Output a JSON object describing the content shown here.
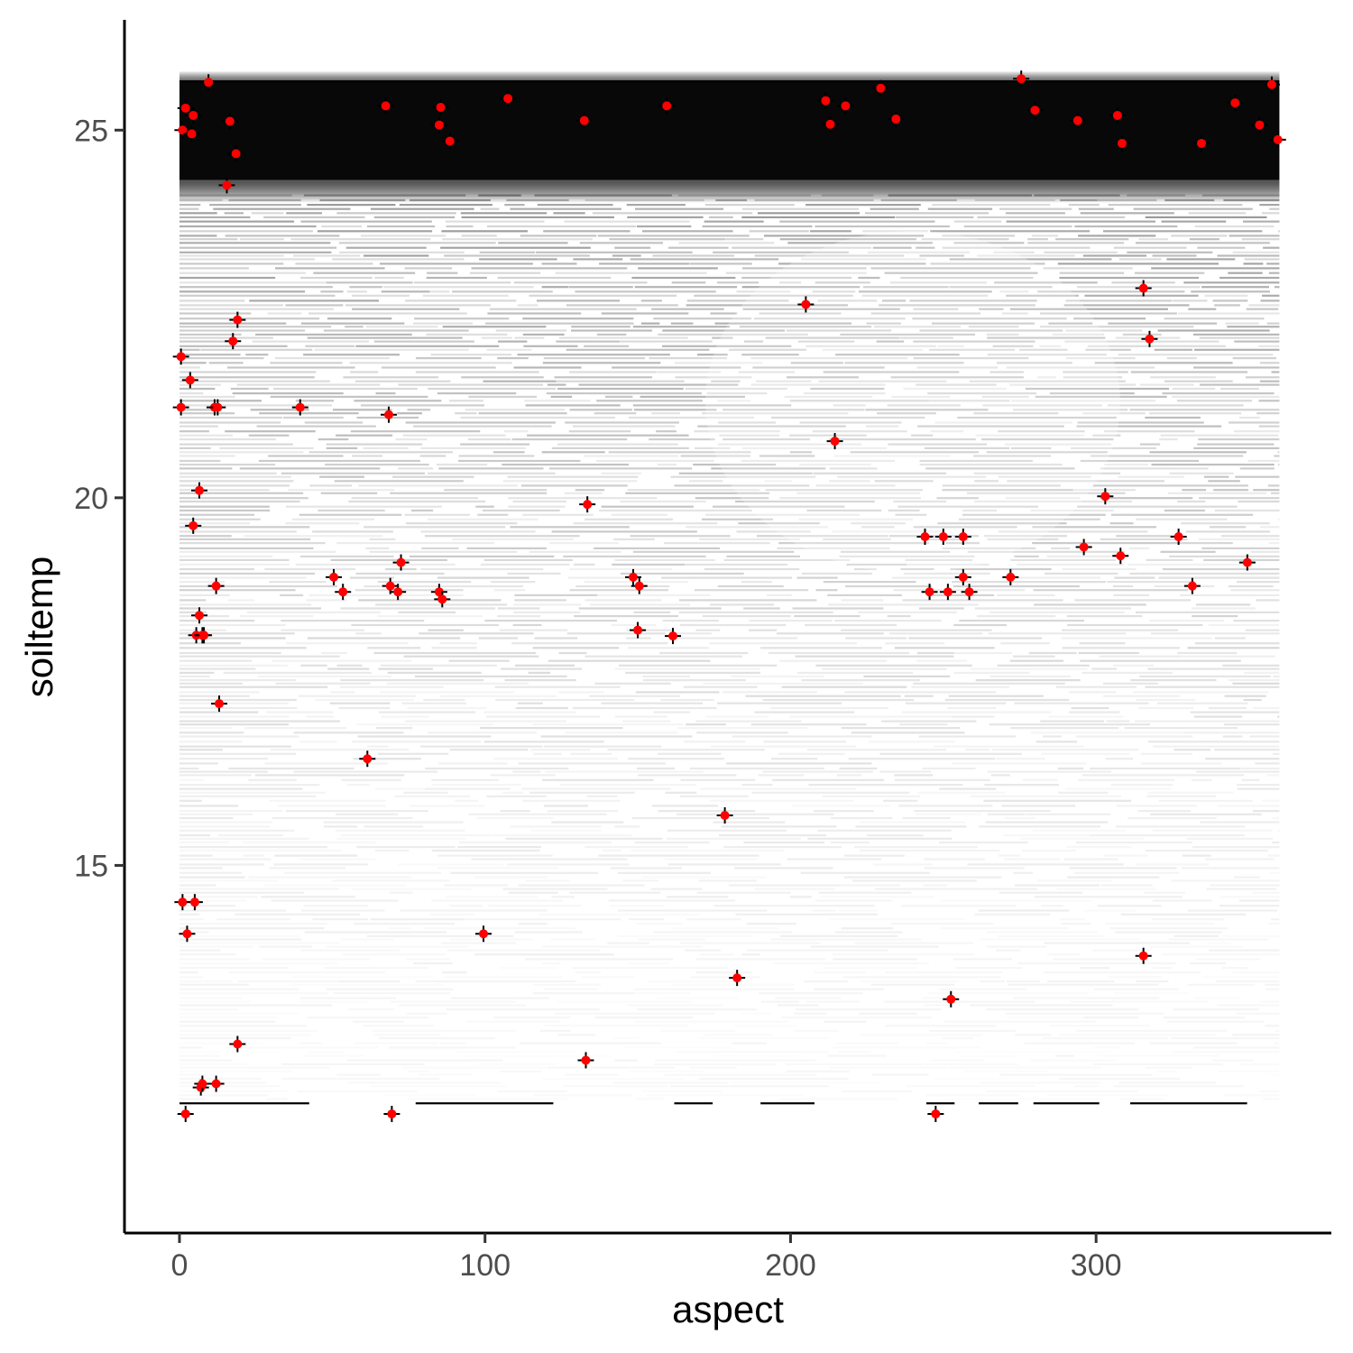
{
  "chart_data": {
    "type": "scatter",
    "xlabel": "aspect",
    "ylabel": "soiltemp",
    "xlim": [
      -18,
      377
    ],
    "ylim": [
      10.0,
      26.5
    ],
    "x_ticks": [
      0,
      100,
      200,
      300
    ],
    "y_ticks": [
      15,
      20,
      25
    ],
    "grid": false,
    "legend": "none",
    "background": {
      "description": "dense cloud of semi-transparent black points over aspect 0 to 360; nearly solid band at soiltemp 24.2 to 25.8, thinning toward 11.8",
      "color": "#000000",
      "x_range": [
        0,
        360
      ],
      "dense_band": [
        24.2,
        25.8
      ],
      "y_min": 11.8
    },
    "series": [
      {
        "color": "#ff0000",
        "points": [
          {
            "x": 9.5,
            "y": 25.65
          },
          {
            "x": 2,
            "y": 25.3
          },
          {
            "x": 4.5,
            "y": 25.2
          },
          {
            "x": 1,
            "y": 25.0
          },
          {
            "x": 4,
            "y": 24.95
          },
          {
            "x": 16.5,
            "y": 25.12
          },
          {
            "x": 18.5,
            "y": 24.68
          },
          {
            "x": 15.5,
            "y": 24.25
          },
          {
            "x": 67.5,
            "y": 25.33
          },
          {
            "x": 85.5,
            "y": 25.31
          },
          {
            "x": 85,
            "y": 25.07
          },
          {
            "x": 88.5,
            "y": 24.85
          },
          {
            "x": 107.5,
            "y": 25.43
          },
          {
            "x": 132.5,
            "y": 25.13
          },
          {
            "x": 159.5,
            "y": 25.33
          },
          {
            "x": 211.5,
            "y": 25.4
          },
          {
            "x": 213,
            "y": 25.08
          },
          {
            "x": 218,
            "y": 25.33
          },
          {
            "x": 229.5,
            "y": 25.57
          },
          {
            "x": 234.5,
            "y": 25.15
          },
          {
            "x": 275.5,
            "y": 25.7
          },
          {
            "x": 280,
            "y": 25.27
          },
          {
            "x": 294,
            "y": 25.13
          },
          {
            "x": 307,
            "y": 25.2
          },
          {
            "x": 308.5,
            "y": 24.82
          },
          {
            "x": 334.5,
            "y": 24.82
          },
          {
            "x": 345.5,
            "y": 25.37
          },
          {
            "x": 353.5,
            "y": 25.07
          },
          {
            "x": 357.5,
            "y": 25.62
          },
          {
            "x": 359.5,
            "y": 24.87
          },
          {
            "x": 315.5,
            "y": 22.85
          },
          {
            "x": 205,
            "y": 22.63
          },
          {
            "x": 19,
            "y": 22.42
          },
          {
            "x": 17.5,
            "y": 22.13
          },
          {
            "x": 317.5,
            "y": 22.16
          },
          {
            "x": 0.5,
            "y": 21.92
          },
          {
            "x": 3.5,
            "y": 21.6
          },
          {
            "x": 0.5,
            "y": 21.23
          },
          {
            "x": 11.5,
            "y": 21.23
          },
          {
            "x": 12.5,
            "y": 21.23
          },
          {
            "x": 39.5,
            "y": 21.23
          },
          {
            "x": 68.5,
            "y": 21.13
          },
          {
            "x": 214.5,
            "y": 20.77
          },
          {
            "x": 6.5,
            "y": 20.1
          },
          {
            "x": 133.5,
            "y": 19.91
          },
          {
            "x": 303,
            "y": 20.02
          },
          {
            "x": 4.5,
            "y": 19.62
          },
          {
            "x": 244,
            "y": 19.47
          },
          {
            "x": 250,
            "y": 19.47
          },
          {
            "x": 256.5,
            "y": 19.47
          },
          {
            "x": 327,
            "y": 19.47
          },
          {
            "x": 296,
            "y": 19.33
          },
          {
            "x": 308,
            "y": 19.21
          },
          {
            "x": 72.5,
            "y": 19.12
          },
          {
            "x": 349.5,
            "y": 19.12
          },
          {
            "x": 50.5,
            "y": 18.92
          },
          {
            "x": 148.5,
            "y": 18.92
          },
          {
            "x": 256.5,
            "y": 18.92
          },
          {
            "x": 272,
            "y": 18.92
          },
          {
            "x": 12,
            "y": 18.8
          },
          {
            "x": 69,
            "y": 18.8
          },
          {
            "x": 150.5,
            "y": 18.8
          },
          {
            "x": 331.5,
            "y": 18.8
          },
          {
            "x": 53.5,
            "y": 18.72
          },
          {
            "x": 71.5,
            "y": 18.72
          },
          {
            "x": 85,
            "y": 18.72
          },
          {
            "x": 245.5,
            "y": 18.72
          },
          {
            "x": 251.5,
            "y": 18.72
          },
          {
            "x": 258.5,
            "y": 18.72
          },
          {
            "x": 86,
            "y": 18.62
          },
          {
            "x": 6.5,
            "y": 18.4
          },
          {
            "x": 5.5,
            "y": 18.13
          },
          {
            "x": 7.5,
            "y": 18.13
          },
          {
            "x": 8,
            "y": 18.13
          },
          {
            "x": 150,
            "y": 18.2
          },
          {
            "x": 161.5,
            "y": 18.12
          },
          {
            "x": 13,
            "y": 17.2
          },
          {
            "x": 61.5,
            "y": 16.45
          },
          {
            "x": 178.5,
            "y": 15.68
          },
          {
            "x": 1,
            "y": 14.5
          },
          {
            "x": 5,
            "y": 14.5
          },
          {
            "x": 2.5,
            "y": 14.07
          },
          {
            "x": 99.5,
            "y": 14.07
          },
          {
            "x": 315.5,
            "y": 13.77
          },
          {
            "x": 182.5,
            "y": 13.47
          },
          {
            "x": 252.5,
            "y": 13.18
          },
          {
            "x": 19,
            "y": 12.57
          },
          {
            "x": 133,
            "y": 12.35
          },
          {
            "x": 7,
            "y": 11.98
          },
          {
            "x": 7.5,
            "y": 12.03
          },
          {
            "x": 12,
            "y": 12.03
          },
          {
            "x": 2,
            "y": 11.62
          },
          {
            "x": 69.5,
            "y": 11.62
          },
          {
            "x": 247.5,
            "y": 11.62
          }
        ]
      }
    ]
  }
}
